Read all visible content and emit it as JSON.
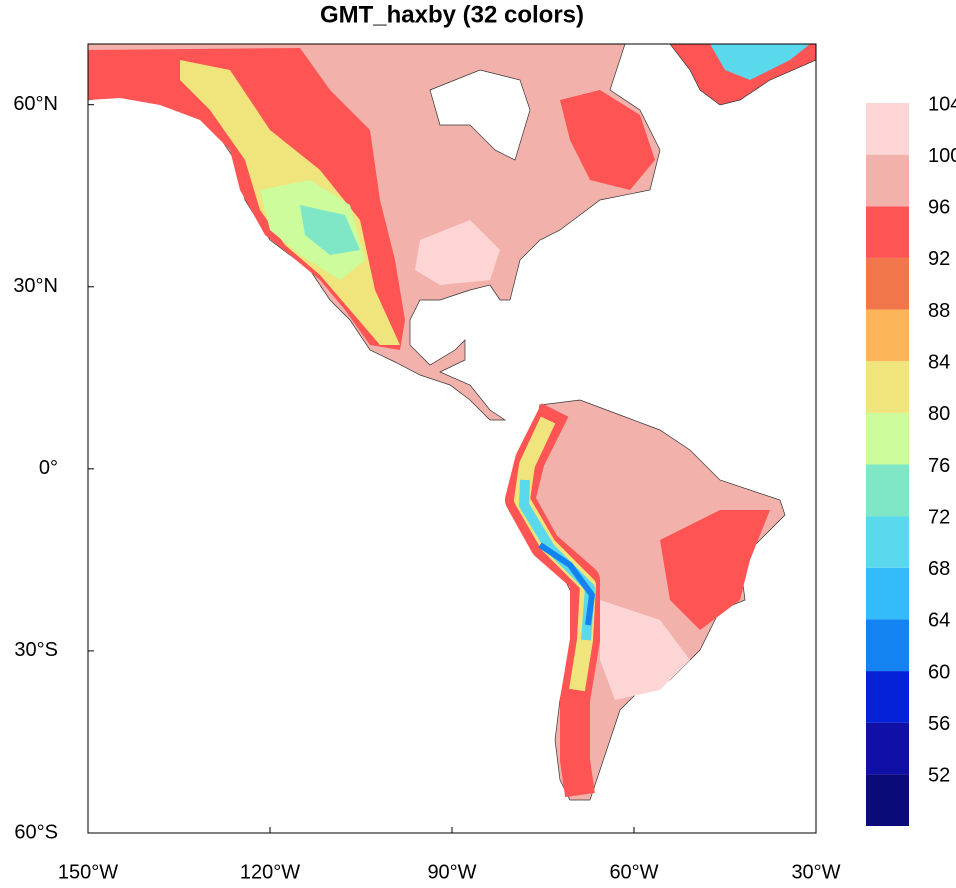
{
  "title": "GMT_haxby (32 colors)",
  "map": {
    "type": "map",
    "xlim": [
      -150,
      -30
    ],
    "ylim": [
      -60,
      70
    ],
    "xticks": [
      {
        "value": -150,
        "label": "150°W"
      },
      {
        "value": -120,
        "label": "120°W"
      },
      {
        "value": -90,
        "label": "90°W"
      },
      {
        "value": -60,
        "label": "60°W"
      },
      {
        "value": -30,
        "label": "30°W"
      }
    ],
    "yticks": [
      {
        "value": 60,
        "label": "60°N"
      },
      {
        "value": 30,
        "label": "30°N"
      },
      {
        "value": 0,
        "label": "0°"
      },
      {
        "value": -30,
        "label": "30°S"
      },
      {
        "value": -60,
        "label": "60°S"
      }
    ]
  },
  "colorbar": {
    "levels": [
      52,
      56,
      60,
      64,
      68,
      72,
      76,
      80,
      84,
      88,
      92,
      96,
      100,
      104
    ],
    "colors": [
      "#0a0a78",
      "#1010a6",
      "#0522d8",
      "#1482f0",
      "#33bcf9",
      "#5ad8ec",
      "#7fe6c6",
      "#ccfc9c",
      "#f0e47c",
      "#fdb55a",
      "#f2764c",
      "#fe5454",
      "#f2b1ab",
      "#fdd5d5"
    ]
  }
}
